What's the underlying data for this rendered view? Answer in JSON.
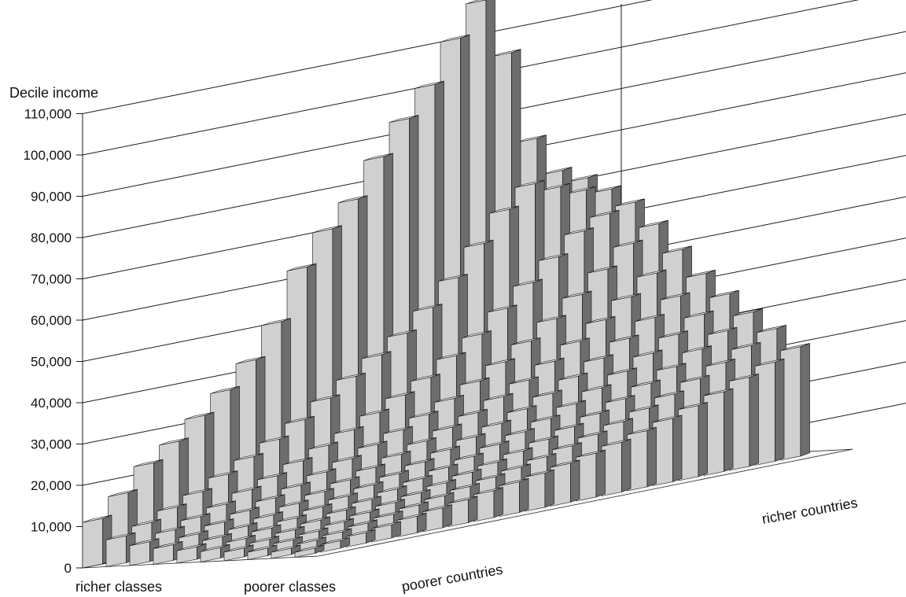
{
  "chart_data": {
    "type": "bar3d",
    "ylabel": "Decile income",
    "yticks": [
      0,
      10000,
      20000,
      30000,
      40000,
      50000,
      60000,
      70000,
      80000,
      90000,
      100000,
      110000
    ],
    "ytick_labels": [
      "0",
      "10,000",
      "20,000",
      "30,000",
      "40,000",
      "50,000",
      "60,000",
      "70,000",
      "80,000",
      "90,000",
      "100,000",
      "110,000"
    ],
    "ylim": [
      0,
      120000
    ],
    "class_axis": {
      "start_label": "richer classes",
      "end_label": "poorer classes"
    },
    "country_axis": {
      "start_label": "poorer countries",
      "end_label": "richer countries"
    },
    "deciles": 10,
    "country_groups": 20,
    "group_decile_profiles": [
      [
        1200,
        1500,
        1800,
        2100,
        2500,
        3000,
        3800,
        4800,
        6500,
        11000
      ],
      [
        1800,
        2200,
        2600,
        3000,
        3500,
        4200,
        5200,
        6500,
        8500,
        16000
      ],
      [
        2500,
        3000,
        3500,
        4100,
        4800,
        5600,
        6800,
        8400,
        11000,
        22000
      ],
      [
        3200,
        3900,
        4500,
        5200,
        6000,
        7000,
        8400,
        10200,
        13500,
        26000
      ],
      [
        4000,
        4800,
        5600,
        6400,
        7400,
        8600,
        10200,
        12500,
        16500,
        31000
      ],
      [
        4800,
        5800,
        6700,
        7700,
        8800,
        10200,
        12000,
        14600,
        19500,
        36000
      ],
      [
        5600,
        6800,
        7800,
        9000,
        10300,
        11800,
        14000,
        17000,
        22500,
        42000
      ],
      [
        6500,
        7800,
        9000,
        10300,
        11800,
        13600,
        16000,
        19500,
        26000,
        50000
      ],
      [
        7400,
        8900,
        10300,
        11800,
        13400,
        15500,
        18200,
        22000,
        30000,
        62000
      ],
      [
        8300,
        10000,
        11500,
        13200,
        15200,
        17500,
        20500,
        25000,
        34000,
        70000
      ],
      [
        9400,
        11300,
        13000,
        14900,
        17000,
        19600,
        23000,
        28000,
        38000,
        76000
      ],
      [
        10600,
        12700,
        14600,
        16700,
        19000,
        21900,
        25600,
        31000,
        42000,
        85000
      ],
      [
        12000,
        14300,
        16400,
        18700,
        21300,
        24500,
        28600,
        35000,
        47000,
        93000
      ],
      [
        13600,
        16100,
        18400,
        21000,
        23800,
        27300,
        32000,
        39000,
        53000,
        100000
      ],
      [
        15300,
        18100,
        20700,
        23600,
        26700,
        30600,
        35800,
        44000,
        60000,
        110000
      ],
      [
        17200,
        20300,
        23200,
        26400,
        29900,
        34200,
        40000,
        49000,
        67000,
        118000
      ],
      [
        19300,
        22800,
        26000,
        29500,
        33400,
        38200,
        44600,
        54000,
        72000,
        104000
      ],
      [
        21600,
        25500,
        29000,
        32900,
        37200,
        42500,
        49500,
        59000,
        70000,
        82000
      ],
      [
        24000,
        28300,
        32200,
        36500,
        41200,
        47000,
        54500,
        62000,
        68000,
        73000
      ],
      [
        26500,
        31200,
        35500,
        40200,
        45400,
        51500,
        58000,
        63500,
        67000,
        70000
      ]
    ]
  }
}
